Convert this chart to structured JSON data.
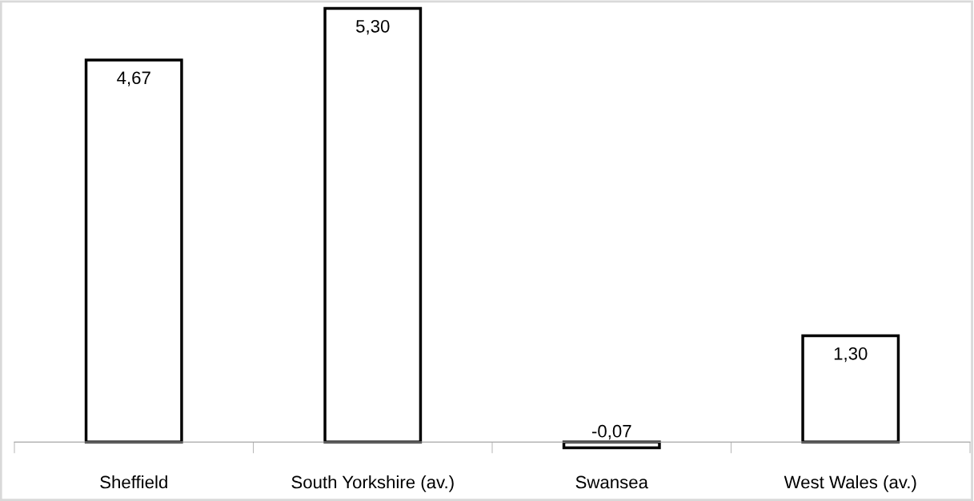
{
  "chart_data": {
    "type": "bar",
    "categories": [
      "Sheffield",
      "South Yorkshire (av.)",
      "Swansea",
      "West Wales (av.)"
    ],
    "values": [
      4.67,
      5.3,
      -0.07,
      1.3
    ],
    "value_labels": [
      "4,67",
      "5,30",
      "-0,07",
      "1,30"
    ],
    "color": "#ffffff",
    "grid": false,
    "legend": false
  }
}
